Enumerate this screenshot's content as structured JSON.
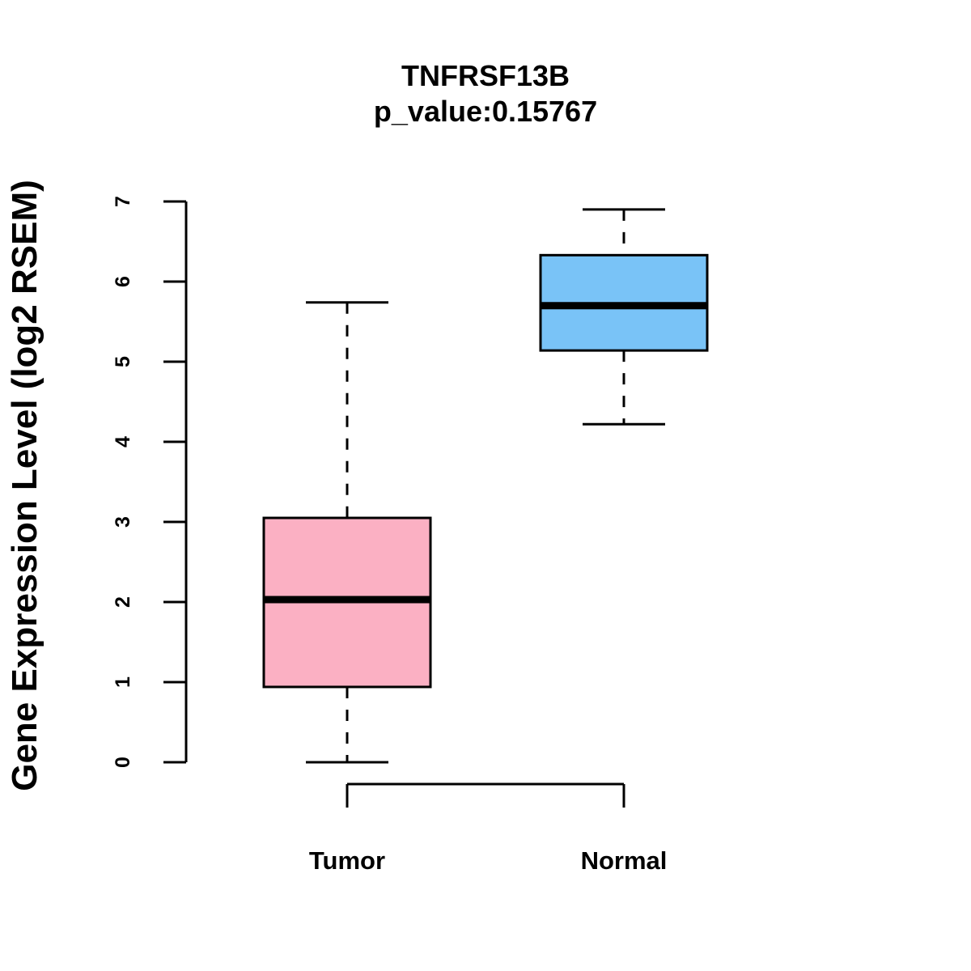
{
  "chart_data": {
    "type": "box",
    "title": "TNFRSF13B",
    "subtitle": "p_value:0.15767",
    "xlabel": "",
    "ylabel": "Gene Expression Level (log2 RSEM)",
    "ylim": [
      0,
      7
    ],
    "yticks": [
      0,
      1,
      2,
      3,
      4,
      5,
      6,
      7
    ],
    "grid": false,
    "categories": [
      "Tumor",
      "Normal"
    ],
    "boxes": [
      {
        "name": "Tumor",
        "whisker_low": 0.0,
        "q1": 0.94,
        "median": 2.03,
        "q3": 3.05,
        "whisker_high": 5.74,
        "color": "#FBB0C3"
      },
      {
        "name": "Normal",
        "whisker_low": 4.22,
        "q1": 5.14,
        "median": 5.7,
        "q3": 6.33,
        "whisker_high": 6.9,
        "color": "#79C3F7"
      }
    ]
  }
}
